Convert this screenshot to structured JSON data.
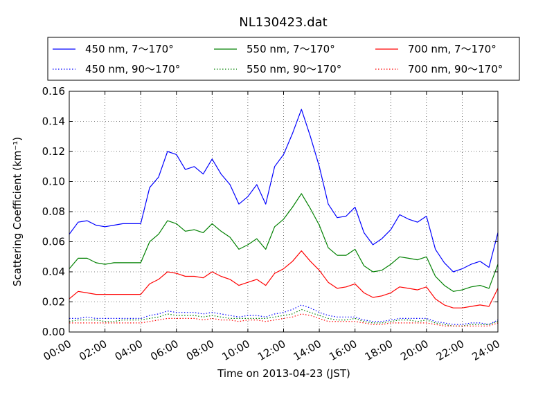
{
  "chart_data": {
    "type": "line",
    "title": "NL130423.dat",
    "xlabel": "Time on 2013-04-23 (JST)",
    "ylabel": "Scattering Coefficient (km⁻¹)",
    "x_unit": "hour",
    "xlim": [
      0,
      24
    ],
    "ylim": [
      0,
      0.16
    ],
    "x_ticks": [
      "00:00",
      "02:00",
      "04:00",
      "06:00",
      "08:00",
      "10:00",
      "12:00",
      "14:00",
      "16:00",
      "18:00",
      "20:00",
      "22:00",
      "24:00"
    ],
    "y_ticks": [
      "0.00",
      "0.02",
      "0.04",
      "0.06",
      "0.08",
      "0.10",
      "0.12",
      "0.14",
      "0.16"
    ],
    "grid": true,
    "legend_position": "top",
    "x": [
      0,
      0.5,
      1,
      1.5,
      2,
      2.5,
      3,
      3.5,
      4,
      4.5,
      5,
      5.5,
      6,
      6.5,
      7,
      7.5,
      8,
      8.5,
      9,
      9.5,
      10,
      10.5,
      11,
      11.5,
      12,
      12.5,
      13,
      13.5,
      14,
      14.5,
      15,
      15.5,
      16,
      16.5,
      17,
      17.5,
      18,
      18.5,
      19,
      19.5,
      20,
      20.5,
      21,
      21.5,
      22,
      22.5,
      23,
      23.5,
      24
    ],
    "series": [
      {
        "name": "450 nm, 7～170°",
        "color": "#0000ff",
        "style": "solid",
        "values": [
          0.065,
          0.073,
          0.074,
          0.071,
          0.07,
          0.071,
          0.072,
          0.072,
          0.072,
          0.096,
          0.103,
          0.12,
          0.118,
          0.108,
          0.11,
          0.105,
          0.115,
          0.105,
          0.098,
          0.085,
          0.09,
          0.098,
          0.085,
          0.11,
          0.118,
          0.132,
          0.148,
          0.13,
          0.11,
          0.085,
          0.076,
          0.077,
          0.083,
          0.066,
          0.058,
          0.062,
          0.068,
          0.078,
          0.075,
          0.073,
          0.077,
          0.055,
          0.046,
          0.04,
          0.042,
          0.045,
          0.047,
          0.043,
          0.066
        ]
      },
      {
        "name": "550 nm, 7～170°",
        "color": "#008000",
        "style": "solid",
        "values": [
          0.042,
          0.049,
          0.049,
          0.046,
          0.045,
          0.046,
          0.046,
          0.046,
          0.046,
          0.06,
          0.065,
          0.074,
          0.072,
          0.067,
          0.068,
          0.066,
          0.072,
          0.067,
          0.063,
          0.055,
          0.058,
          0.062,
          0.055,
          0.07,
          0.075,
          0.083,
          0.092,
          0.082,
          0.071,
          0.056,
          0.051,
          0.051,
          0.055,
          0.044,
          0.04,
          0.041,
          0.045,
          0.05,
          0.049,
          0.048,
          0.05,
          0.037,
          0.031,
          0.027,
          0.028,
          0.03,
          0.031,
          0.029,
          0.045
        ]
      },
      {
        "name": "700 nm, 7～170°",
        "color": "#ff0000",
        "style": "solid",
        "values": [
          0.022,
          0.027,
          0.026,
          0.025,
          0.025,
          0.025,
          0.025,
          0.025,
          0.025,
          0.032,
          0.035,
          0.04,
          0.039,
          0.037,
          0.037,
          0.036,
          0.04,
          0.037,
          0.035,
          0.031,
          0.033,
          0.035,
          0.031,
          0.039,
          0.042,
          0.047,
          0.054,
          0.047,
          0.041,
          0.033,
          0.029,
          0.03,
          0.032,
          0.026,
          0.023,
          0.024,
          0.026,
          0.03,
          0.029,
          0.028,
          0.03,
          0.022,
          0.018,
          0.016,
          0.016,
          0.017,
          0.018,
          0.017,
          0.029
        ]
      },
      {
        "name": "450 nm, 90～170°",
        "color": "#0000ff",
        "style": "dotted",
        "values": [
          0.009,
          0.009,
          0.01,
          0.009,
          0.009,
          0.009,
          0.009,
          0.009,
          0.009,
          0.011,
          0.012,
          0.014,
          0.013,
          0.013,
          0.013,
          0.012,
          0.013,
          0.012,
          0.011,
          0.01,
          0.011,
          0.011,
          0.01,
          0.012,
          0.013,
          0.015,
          0.018,
          0.016,
          0.013,
          0.011,
          0.01,
          0.01,
          0.01,
          0.008,
          0.007,
          0.007,
          0.008,
          0.009,
          0.009,
          0.009,
          0.009,
          0.007,
          0.006,
          0.005,
          0.005,
          0.006,
          0.006,
          0.005,
          0.008
        ]
      },
      {
        "name": "550 nm, 90～170°",
        "color": "#008000",
        "style": "dotted",
        "values": [
          0.007,
          0.008,
          0.008,
          0.008,
          0.007,
          0.007,
          0.008,
          0.008,
          0.008,
          0.009,
          0.01,
          0.012,
          0.011,
          0.011,
          0.011,
          0.01,
          0.011,
          0.01,
          0.009,
          0.009,
          0.009,
          0.009,
          0.009,
          0.01,
          0.011,
          0.012,
          0.015,
          0.013,
          0.011,
          0.009,
          0.008,
          0.008,
          0.009,
          0.007,
          0.006,
          0.006,
          0.007,
          0.008,
          0.008,
          0.007,
          0.008,
          0.006,
          0.005,
          0.004,
          0.004,
          0.005,
          0.005,
          0.005,
          0.007
        ]
      },
      {
        "name": "700 nm, 90～170°",
        "color": "#ff0000",
        "style": "dotted",
        "values": [
          0.006,
          0.006,
          0.006,
          0.006,
          0.006,
          0.006,
          0.006,
          0.006,
          0.006,
          0.007,
          0.008,
          0.009,
          0.009,
          0.009,
          0.009,
          0.008,
          0.009,
          0.008,
          0.008,
          0.007,
          0.008,
          0.008,
          0.007,
          0.008,
          0.009,
          0.01,
          0.012,
          0.011,
          0.009,
          0.007,
          0.007,
          0.007,
          0.007,
          0.006,
          0.005,
          0.005,
          0.006,
          0.006,
          0.006,
          0.006,
          0.006,
          0.005,
          0.004,
          0.004,
          0.004,
          0.004,
          0.004,
          0.004,
          0.006
        ]
      }
    ]
  }
}
